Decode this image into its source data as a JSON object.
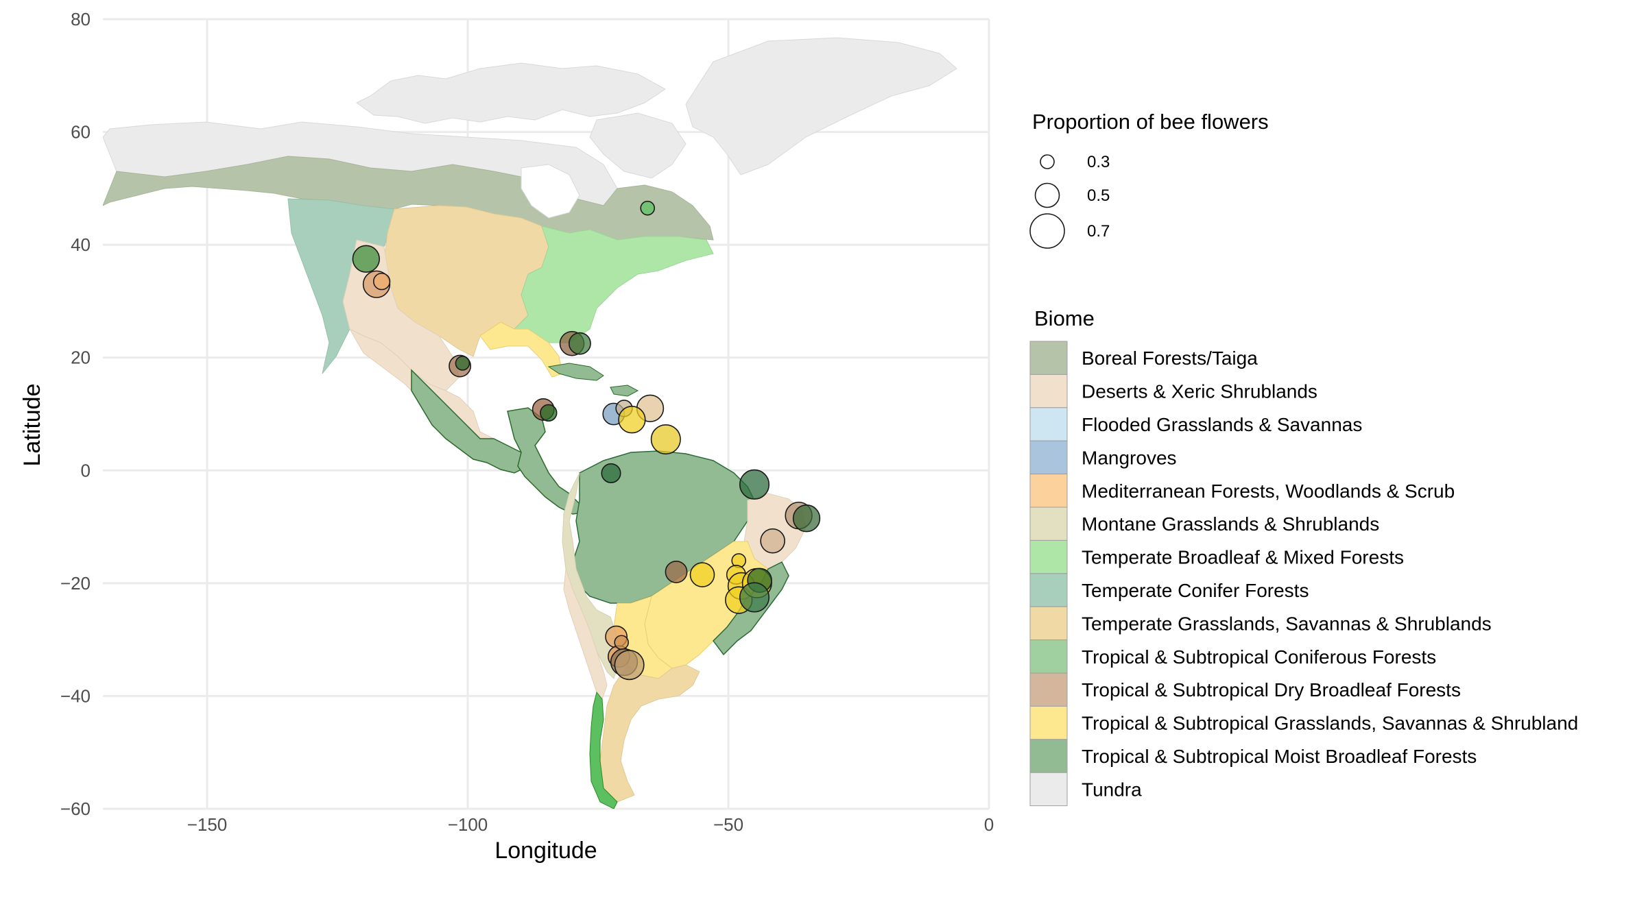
{
  "map": {
    "x_axis": {
      "label": "Longitude",
      "range": [
        -170,
        0
      ],
      "ticks": [
        {
          "value": -150,
          "label": "−150"
        },
        {
          "value": -100,
          "label": "−100"
        },
        {
          "value": -50,
          "label": "−50"
        },
        {
          "value": 0,
          "label": "0"
        }
      ]
    },
    "y_axis": {
      "label": "Latitude",
      "range": [
        -60,
        80
      ],
      "ticks": [
        {
          "value": 80,
          "label": "80"
        },
        {
          "value": 60,
          "label": "60"
        },
        {
          "value": 40,
          "label": "40"
        },
        {
          "value": 20,
          "label": "20"
        },
        {
          "value": 0,
          "label": "0"
        },
        {
          "value": -20,
          "label": "−20"
        },
        {
          "value": -40,
          "label": "−40"
        },
        {
          "value": -60,
          "label": "−60"
        }
      ]
    },
    "grid": true
  },
  "size_legend": {
    "title": "Proportion of bee flowers",
    "items": [
      {
        "value": 0.3,
        "label": "0.3"
      },
      {
        "value": 0.5,
        "label": "0.5"
      },
      {
        "value": 0.7,
        "label": "0.7"
      }
    ]
  },
  "biome_legend": {
    "title": "Biome",
    "items": [
      {
        "label": "Boreal Forests/Taiga",
        "color": "#b5c4a8"
      },
      {
        "label": "Deserts & Xeric Shrublands",
        "color": "#f0e0cc"
      },
      {
        "label": "Flooded Grasslands & Savannas",
        "color": "#cde6f2"
      },
      {
        "label": "Mangroves",
        "color": "#aac4dd"
      },
      {
        "label": "Mediterranean Forests, Woodlands & Scrub",
        "color": "#fcd19c"
      },
      {
        "label": "Montane Grasslands & Shrublands",
        "color": "#e3e0c2"
      },
      {
        "label": "Temperate Broadleaf & Mixed Forests",
        "color": "#aee6a8"
      },
      {
        "label": "Temperate Conifer Forests",
        "color": "#a8cfbb"
      },
      {
        "label": "Temperate Grasslands, Savannas & Shrublands",
        "color": "#f0d9a5"
      },
      {
        "label": "Tropical & Subtropical Coniferous Forests",
        "color": "#a0d0a0"
      },
      {
        "label": "Tropical & Subtropical Dry Broadleaf Forests",
        "color": "#d4b69c"
      },
      {
        "label": "Tropical & Subtropical Grasslands, Savannas & Shrubland",
        "color": "#fde890"
      },
      {
        "label": "Tropical & Subtropical Moist Broadleaf Forests",
        "color": "#93bb93"
      },
      {
        "label": "Tundra",
        "color": "#ebebeb"
      }
    ]
  },
  "points": [
    {
      "lon": -65.5,
      "lat": 46.5,
      "prop": 0.3,
      "color": "#5cc060"
    },
    {
      "lon": -119.5,
      "lat": 37.5,
      "prop": 0.55,
      "color": "#3a8a3a"
    },
    {
      "lon": -117.5,
      "lat": 33,
      "prop": 0.55,
      "color": "#d89a6a"
    },
    {
      "lon": -116.5,
      "lat": 33.5,
      "prop": 0.35,
      "color": "#f0b070"
    },
    {
      "lon": -101.5,
      "lat": 18.5,
      "prop": 0.45,
      "color": "#a07050"
    },
    {
      "lon": -101,
      "lat": 19,
      "prop": 0.3,
      "color": "#2a6a2a"
    },
    {
      "lon": -80,
      "lat": 22.5,
      "prop": 0.5,
      "color": "#8a6040"
    },
    {
      "lon": -78.5,
      "lat": 22.5,
      "prop": 0.45,
      "color": "#3a7a3a"
    },
    {
      "lon": -85.5,
      "lat": 10.8,
      "prop": 0.45,
      "color": "#9a6040"
    },
    {
      "lon": -84.5,
      "lat": 10.2,
      "prop": 0.35,
      "color": "#1f6a1f"
    },
    {
      "lon": -72,
      "lat": 10,
      "prop": 0.45,
      "color": "#7a9cc0"
    },
    {
      "lon": -70,
      "lat": 11,
      "prop": 0.35,
      "color": "#c8b090"
    },
    {
      "lon": -65,
      "lat": 11,
      "prop": 0.55,
      "color": "#e0c090"
    },
    {
      "lon": -68.5,
      "lat": 9,
      "prop": 0.55,
      "color": "#f0d020"
    },
    {
      "lon": -62,
      "lat": 5.5,
      "prop": 0.6,
      "color": "#e8c820"
    },
    {
      "lon": -72.5,
      "lat": -0.5,
      "prop": 0.4,
      "color": "#2a6a3a"
    },
    {
      "lon": -45,
      "lat": -2.5,
      "prop": 0.6,
      "color": "#2a6a3a"
    },
    {
      "lon": -36.5,
      "lat": -8,
      "prop": 0.55,
      "color": "#b09070"
    },
    {
      "lon": -35,
      "lat": -8.5,
      "prop": 0.55,
      "color": "#3a6a3a"
    },
    {
      "lon": -41.5,
      "lat": -12.5,
      "prop": 0.5,
      "color": "#d0b090"
    },
    {
      "lon": -60,
      "lat": -18,
      "prop": 0.45,
      "color": "#9a6848"
    },
    {
      "lon": -55,
      "lat": -18.5,
      "prop": 0.5,
      "color": "#f0d020"
    },
    {
      "lon": -48,
      "lat": -16,
      "prop": 0.3,
      "color": "#f0d020"
    },
    {
      "lon": -48.5,
      "lat": -18.5,
      "prop": 0.4,
      "color": "#f0d020"
    },
    {
      "lon": -47.5,
      "lat": -20.5,
      "prop": 0.55,
      "color": "#f0d020"
    },
    {
      "lon": -48,
      "lat": -23,
      "prop": 0.55,
      "color": "#f0d020"
    },
    {
      "lon": -44.5,
      "lat": -20,
      "prop": 0.6,
      "color": "#f0d020"
    },
    {
      "lon": -44,
      "lat": -19.5,
      "prop": 0.5,
      "color": "#2a6a2a"
    },
    {
      "lon": -45,
      "lat": -22.5,
      "prop": 0.6,
      "color": "#3a7a4a"
    },
    {
      "lon": -71.5,
      "lat": -29.5,
      "prop": 0.45,
      "color": "#e8a060"
    },
    {
      "lon": -71,
      "lat": -33,
      "prop": 0.45,
      "color": "#e09050"
    },
    {
      "lon": -70.5,
      "lat": -30.5,
      "prop": 0.3,
      "color": "#d09050"
    },
    {
      "lon": -70,
      "lat": -34,
      "prop": 0.55,
      "color": "#8a7050"
    },
    {
      "lon": -69,
      "lat": -34.5,
      "prop": 0.6,
      "color": "#c0a070"
    }
  ]
}
